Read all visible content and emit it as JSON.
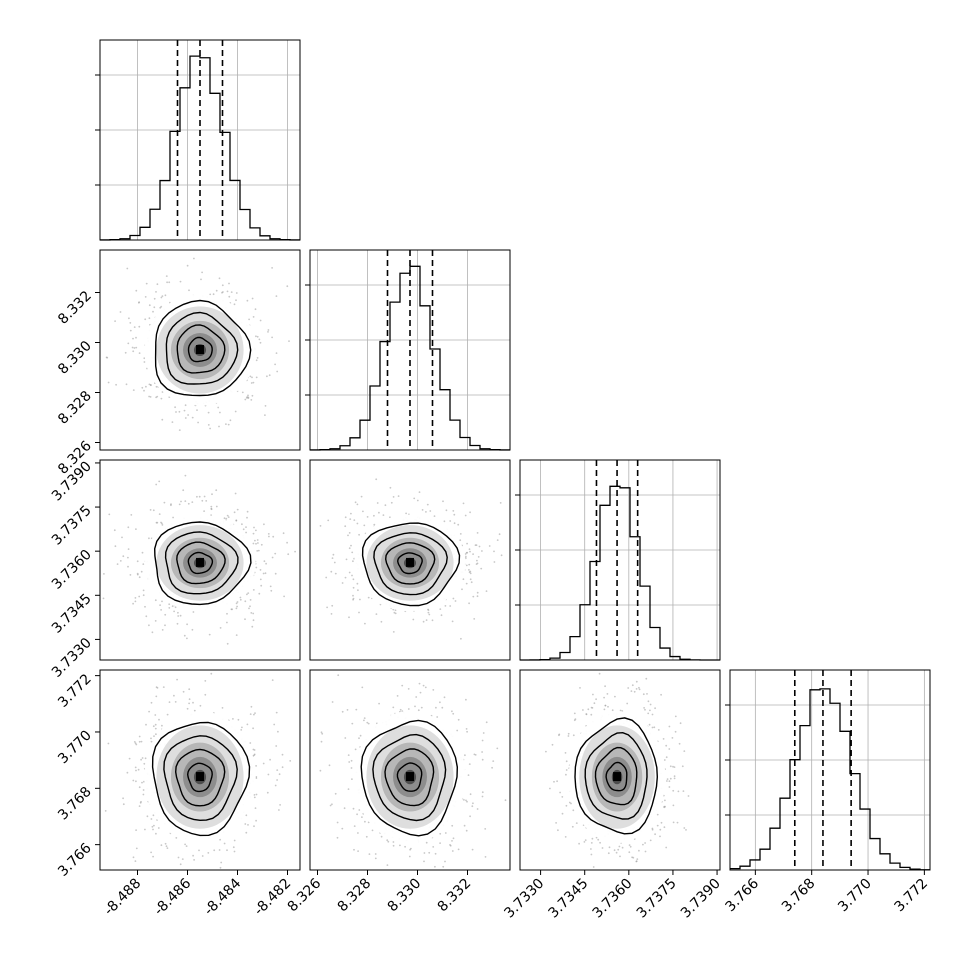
{
  "chart_data": {
    "type": "corner",
    "title": "",
    "parameters": [
      {
        "range": [
          -8.4895,
          -8.4815
        ],
        "ticks": [
          "-8.488",
          "-8.486",
          "-8.484",
          "-8.482"
        ],
        "tick_values": [
          -8.488,
          -8.486,
          -8.484,
          -8.482
        ],
        "mean": -8.4855,
        "sigma": 0.00095,
        "quantiles": [
          -8.4864,
          -8.4855,
          -8.4846
        ]
      },
      {
        "range": [
          8.3257,
          8.3337
        ],
        "ticks": [
          "8.326",
          "8.328",
          "8.330",
          "8.332"
        ],
        "tick_values": [
          8.326,
          8.328,
          8.33,
          8.332
        ],
        "mean": 8.3297,
        "sigma": 0.00095,
        "quantiles": [
          8.3288,
          8.3297,
          8.3306
        ]
      },
      {
        "range": [
          3.7323,
          3.7391
        ],
        "ticks": [
          "3.7330",
          "3.7345",
          "3.7360",
          "3.7375",
          "3.7390"
        ],
        "tick_values": [
          3.733,
          3.7345,
          3.736,
          3.7375,
          3.739
        ],
        "mean": 3.7356,
        "sigma": 0.0007,
        "quantiles": [
          3.7349,
          3.7356,
          3.7363
        ]
      },
      {
        "range": [
          3.7651,
          3.7722
        ],
        "ticks": [
          "3.766",
          "3.768",
          "3.770",
          "3.772"
        ],
        "tick_values": [
          3.766,
          3.768,
          3.77,
          3.772
        ],
        "mean": 3.7684,
        "sigma": 0.001,
        "quantiles": [
          3.7674,
          3.7684,
          3.7694
        ]
      }
    ],
    "histogram_bins": 20,
    "contour_levels": [
      0.5,
      1.0,
      1.5,
      2.0
    ],
    "grid": true,
    "colors": {
      "line": "#000000",
      "grid": "#b0b0b0",
      "scatter": "#9a9a9a",
      "frame": "#000000"
    }
  }
}
